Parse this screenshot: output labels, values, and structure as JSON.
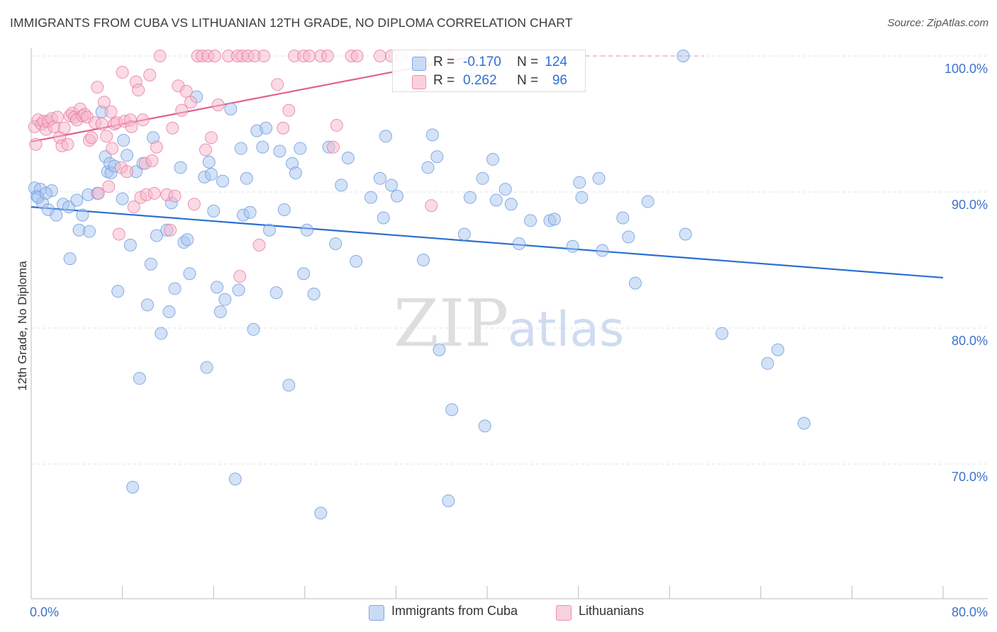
{
  "header": {
    "title": "IMMIGRANTS FROM CUBA VS LITHUANIAN 12TH GRADE, NO DIPLOMA CORRELATION CHART",
    "source": "Source: ZipAtlas.com"
  },
  "watermark": {
    "zip": "ZIP",
    "atlas": "atlas"
  },
  "legend_top": {
    "rows": [
      {
        "r_label": "R =",
        "r_value": "-0.170",
        "n_label": "N =",
        "n_value": "124",
        "color": "#a9c6f0"
      },
      {
        "r_label": "R =",
        "r_value": "0.262",
        "n_label": "N =",
        "n_value": "96",
        "color": "#f5b6c9"
      }
    ]
  },
  "legend_bottom": [
    {
      "label": "Immigrants from Cuba",
      "color": "#a9c6f0"
    },
    {
      "label": "Lithuanians",
      "color": "#f5b6c9"
    }
  ],
  "chart_data": {
    "type": "scatter",
    "title": "IMMIGRANTS FROM CUBA VS LITHUANIAN 12TH GRADE, NO DIPLOMA CORRELATION CHART",
    "xlabel": "",
    "ylabel": "12th Grade, No Diploma",
    "xlim": [
      0,
      80
    ],
    "ylim": [
      60.5,
      101
    ],
    "x_tick_labels": [
      "0.0%",
      "80.0%"
    ],
    "y_ticks": [
      70,
      80,
      90,
      100
    ],
    "y_tick_labels": [
      "70.0%",
      "80.0%",
      "90.0%",
      "100.0%"
    ],
    "grid": true,
    "legend_position": "top-center",
    "series": [
      {
        "name": "Immigrants from Cuba",
        "color": "#6a9be0",
        "fill": "#a9c6f0",
        "trend": {
          "x": [
            0,
            80
          ],
          "y": [
            88.9,
            83.7
          ]
        },
        "points": [
          [
            0.3,
            90.3
          ],
          [
            0.5,
            89.7
          ],
          [
            0.8,
            90.2
          ],
          [
            1.0,
            89.2
          ],
          [
            1.5,
            88.7
          ],
          [
            1.8,
            90.1
          ],
          [
            2.2,
            88.3
          ],
          [
            2.8,
            89.1
          ],
          [
            3.3,
            88.9
          ],
          [
            3.4,
            85.1
          ],
          [
            4.0,
            89.4
          ],
          [
            4.2,
            87.2
          ],
          [
            4.5,
            88.3
          ],
          [
            5.0,
            89.8
          ],
          [
            5.1,
            87.1
          ],
          [
            5.8,
            89.9
          ],
          [
            6.2,
            95.9
          ],
          [
            6.5,
            92.6
          ],
          [
            6.7,
            91.5
          ],
          [
            6.9,
            92.1
          ],
          [
            7.0,
            91.4
          ],
          [
            7.3,
            91.9
          ],
          [
            7.6,
            82.7
          ],
          [
            8.0,
            89.5
          ],
          [
            8.1,
            93.8
          ],
          [
            8.4,
            92.7
          ],
          [
            8.7,
            86.1
          ],
          [
            8.9,
            68.3
          ],
          [
            9.2,
            91.5
          ],
          [
            9.5,
            76.3
          ],
          [
            9.8,
            92.1
          ],
          [
            10.2,
            81.7
          ],
          [
            10.5,
            84.7
          ],
          [
            10.7,
            94.0
          ],
          [
            11.0,
            86.8
          ],
          [
            11.4,
            79.6
          ],
          [
            11.9,
            87.2
          ],
          [
            12.1,
            81.2
          ],
          [
            12.3,
            89.2
          ],
          [
            12.6,
            82.9
          ],
          [
            13.1,
            91.8
          ],
          [
            13.4,
            86.3
          ],
          [
            13.7,
            86.5
          ],
          [
            13.9,
            84.0
          ],
          [
            14.5,
            97.0
          ],
          [
            15.2,
            91.1
          ],
          [
            15.4,
            77.1
          ],
          [
            15.6,
            92.2
          ],
          [
            15.8,
            91.3
          ],
          [
            16.0,
            88.6
          ],
          [
            16.3,
            83.0
          ],
          [
            16.6,
            81.2
          ],
          [
            16.8,
            90.8
          ],
          [
            17.0,
            82.1
          ],
          [
            17.5,
            96.1
          ],
          [
            17.9,
            68.9
          ],
          [
            18.2,
            82.8
          ],
          [
            18.4,
            93.2
          ],
          [
            18.6,
            88.3
          ],
          [
            18.9,
            91.0
          ],
          [
            19.2,
            88.5
          ],
          [
            19.5,
            79.9
          ],
          [
            19.8,
            94.5
          ],
          [
            20.3,
            93.3
          ],
          [
            20.6,
            94.7
          ],
          [
            20.9,
            87.2
          ],
          [
            21.5,
            82.6
          ],
          [
            21.8,
            93.0
          ],
          [
            22.2,
            88.7
          ],
          [
            22.6,
            75.8
          ],
          [
            22.9,
            92.1
          ],
          [
            23.2,
            91.4
          ],
          [
            23.6,
            93.2
          ],
          [
            23.9,
            84.0
          ],
          [
            24.2,
            87.2
          ],
          [
            24.8,
            82.5
          ],
          [
            25.4,
            66.4
          ],
          [
            26.1,
            93.3
          ],
          [
            26.7,
            86.2
          ],
          [
            27.2,
            90.5
          ],
          [
            27.8,
            92.5
          ],
          [
            28.5,
            84.9
          ],
          [
            29.8,
            89.6
          ],
          [
            30.6,
            91.0
          ],
          [
            30.9,
            88.1
          ],
          [
            31.1,
            94.1
          ],
          [
            31.6,
            90.5
          ],
          [
            32.1,
            89.7
          ],
          [
            34.4,
            85.0
          ],
          [
            34.8,
            91.8
          ],
          [
            35.2,
            94.2
          ],
          [
            35.6,
            92.6
          ],
          [
            35.8,
            78.4
          ],
          [
            36.6,
            67.3
          ],
          [
            36.9,
            74.0
          ],
          [
            38.0,
            86.9
          ],
          [
            38.5,
            89.6
          ],
          [
            39.6,
            91.0
          ],
          [
            39.8,
            72.8
          ],
          [
            40.5,
            92.4
          ],
          [
            40.8,
            89.4
          ],
          [
            41.6,
            90.2
          ],
          [
            42.1,
            89.1
          ],
          [
            42.8,
            86.2
          ],
          [
            43.8,
            87.9
          ],
          [
            45.5,
            87.9
          ],
          [
            45.9,
            88.0
          ],
          [
            47.5,
            86.0
          ],
          [
            48.1,
            90.7
          ],
          [
            48.3,
            89.6
          ],
          [
            49.8,
            91.0
          ],
          [
            50.1,
            85.7
          ],
          [
            51.9,
            88.1
          ],
          [
            52.4,
            86.7
          ],
          [
            53.0,
            83.3
          ],
          [
            54.1,
            89.3
          ],
          [
            57.2,
            100.0
          ],
          [
            57.4,
            86.9
          ],
          [
            60.6,
            79.6
          ],
          [
            64.6,
            77.4
          ],
          [
            65.5,
            78.4
          ],
          [
            67.8,
            73.0
          ],
          [
            0.6,
            89.6
          ],
          [
            1.3,
            89.9
          ]
        ]
      },
      {
        "name": "Lithuanians",
        "color": "#e87aa0",
        "fill": "#f5b6c9",
        "trend": {
          "x": [
            0,
            39
          ],
          "y": [
            93.7,
            100
          ],
          "dash_to": {
            "x": 59,
            "y": 100
          }
        },
        "points": [
          [
            0.3,
            94.8
          ],
          [
            0.4,
            93.5
          ],
          [
            0.6,
            95.3
          ],
          [
            0.9,
            95.0
          ],
          [
            1.1,
            95.2
          ],
          [
            1.3,
            94.6
          ],
          [
            1.5,
            95.2
          ],
          [
            1.8,
            95.4
          ],
          [
            2.0,
            94.8
          ],
          [
            2.3,
            95.5
          ],
          [
            2.5,
            94.0
          ],
          [
            2.7,
            93.4
          ],
          [
            2.9,
            94.7
          ],
          [
            3.2,
            93.5
          ],
          [
            3.4,
            95.6
          ],
          [
            3.6,
            95.8
          ],
          [
            3.8,
            95.5
          ],
          [
            4.0,
            95.3
          ],
          [
            4.3,
            96.1
          ],
          [
            4.5,
            95.6
          ],
          [
            4.7,
            95.7
          ],
          [
            4.9,
            95.5
          ],
          [
            5.1,
            93.8
          ],
          [
            5.3,
            94.0
          ],
          [
            5.6,
            95.1
          ],
          [
            5.8,
            97.7
          ],
          [
            5.9,
            89.9
          ],
          [
            6.2,
            95.0
          ],
          [
            6.4,
            96.6
          ],
          [
            6.6,
            94.1
          ],
          [
            6.8,
            90.4
          ],
          [
            7.0,
            95.9
          ],
          [
            7.1,
            93.2
          ],
          [
            7.3,
            95.0
          ],
          [
            7.5,
            95.1
          ],
          [
            7.7,
            86.9
          ],
          [
            7.9,
            91.8
          ],
          [
            8.0,
            98.8
          ],
          [
            8.2,
            95.2
          ],
          [
            8.4,
            91.5
          ],
          [
            8.7,
            95.3
          ],
          [
            8.8,
            94.8
          ],
          [
            9.0,
            88.9
          ],
          [
            9.2,
            98.1
          ],
          [
            9.4,
            97.5
          ],
          [
            9.6,
            89.6
          ],
          [
            9.8,
            95.3
          ],
          [
            10.0,
            92.1
          ],
          [
            10.1,
            89.8
          ],
          [
            10.4,
            98.6
          ],
          [
            10.6,
            92.3
          ],
          [
            10.8,
            89.9
          ],
          [
            11.0,
            93.3
          ],
          [
            11.3,
            100.0
          ],
          [
            11.9,
            89.8
          ],
          [
            12.2,
            87.2
          ],
          [
            12.4,
            94.7
          ],
          [
            12.6,
            89.7
          ],
          [
            12.9,
            97.8
          ],
          [
            13.2,
            96.0
          ],
          [
            13.6,
            97.4
          ],
          [
            14.0,
            96.6
          ],
          [
            14.3,
            89.1
          ],
          [
            14.6,
            100.0
          ],
          [
            15.0,
            100.0
          ],
          [
            15.3,
            93.1
          ],
          [
            15.5,
            100.0
          ],
          [
            15.8,
            94.0
          ],
          [
            16.1,
            100.0
          ],
          [
            16.4,
            96.4
          ],
          [
            17.3,
            100.0
          ],
          [
            18.1,
            100.0
          ],
          [
            18.5,
            100.0
          ],
          [
            19.0,
            100.0
          ],
          [
            19.6,
            100.0
          ],
          [
            20.4,
            100.0
          ],
          [
            21.6,
            97.9
          ],
          [
            22.1,
            94.7
          ],
          [
            22.6,
            96.0
          ],
          [
            23.1,
            100.0
          ],
          [
            23.9,
            100.0
          ],
          [
            24.4,
            100.0
          ],
          [
            25.4,
            100.0
          ],
          [
            26.0,
            100.0
          ],
          [
            26.8,
            94.9
          ],
          [
            26.5,
            93.3
          ],
          [
            28.1,
            100.0
          ],
          [
            18.3,
            83.8
          ],
          [
            20.0,
            86.1
          ],
          [
            28.6,
            100.0
          ],
          [
            30.6,
            100.0
          ],
          [
            31.6,
            100.0
          ],
          [
            32.5,
            100.0
          ],
          [
            34.2,
            100.0
          ],
          [
            35.1,
            89.0
          ],
          [
            36.4,
            100.0
          ]
        ]
      }
    ]
  }
}
